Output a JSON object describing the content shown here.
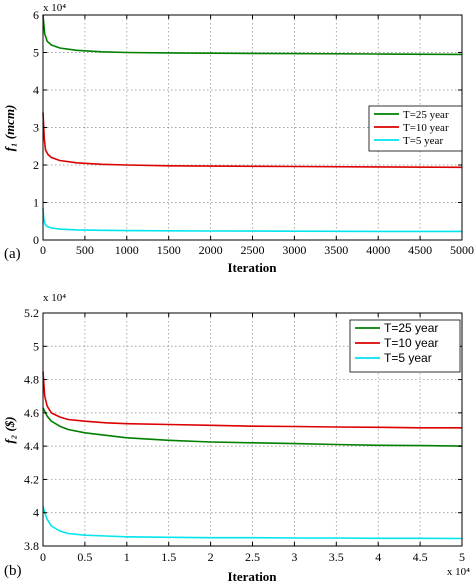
{
  "chart_data": [
    {
      "panel_tag": "(a)",
      "type": "line",
      "xlabel": "Iteration",
      "ylabel": "f₁ (mcm)",
      "y_exponent_label": "x 10⁴",
      "x_exponent_label": "",
      "xlim": [
        0,
        5000
      ],
      "ylim": [
        0,
        6
      ],
      "xticks": [
        0,
        500,
        1000,
        1500,
        2000,
        2500,
        3000,
        3500,
        4000,
        4500,
        5000
      ],
      "yticks": [
        0,
        1,
        2,
        3,
        4,
        5,
        6
      ],
      "xtick_labels": [
        "0",
        "500",
        "1000",
        "1500",
        "2000",
        "2500",
        "3000",
        "3500",
        "4000",
        "4500",
        "5000"
      ],
      "ytick_labels": [
        "0",
        "1",
        "2",
        "3",
        "4",
        "5",
        "6"
      ],
      "grid": true,
      "legend_position": "right-middle",
      "series": [
        {
          "name": "T=25 year",
          "color": "#008000",
          "x": [
            0,
            20,
            50,
            100,
            200,
            400,
            700,
            1000,
            1500,
            2000,
            3000,
            4000,
            5000
          ],
          "y": [
            6.0,
            5.5,
            5.3,
            5.2,
            5.12,
            5.06,
            5.02,
            5.0,
            4.99,
            4.98,
            4.97,
            4.96,
            4.95
          ]
        },
        {
          "name": "T=10 year",
          "color": "#dd0000",
          "x": [
            0,
            15,
            30,
            60,
            100,
            200,
            400,
            700,
            1000,
            1500,
            2000,
            3000,
            4000,
            5000
          ],
          "y": [
            3.4,
            2.7,
            2.4,
            2.28,
            2.2,
            2.12,
            2.06,
            2.02,
            2.0,
            1.98,
            1.97,
            1.96,
            1.95,
            1.94
          ]
        },
        {
          "name": "T=5 year",
          "color": "#00e5ee",
          "x": [
            0,
            10,
            25,
            50,
            100,
            200,
            400,
            700,
            1000,
            1500,
            2000,
            3000,
            4000,
            5000
          ],
          "y": [
            0.85,
            0.55,
            0.42,
            0.36,
            0.32,
            0.29,
            0.27,
            0.26,
            0.25,
            0.245,
            0.24,
            0.235,
            0.23,
            0.23
          ]
        }
      ]
    },
    {
      "panel_tag": "(b)",
      "type": "line",
      "xlabel": "Iteration",
      "ylabel": "f₂ ($)",
      "y_exponent_label": "x 10⁴",
      "x_exponent_label": "x 10⁴",
      "xlim": [
        0,
        5
      ],
      "ylim": [
        3.8,
        5.2
      ],
      "xticks": [
        0,
        0.5,
        1,
        1.5,
        2,
        2.5,
        3,
        3.5,
        4,
        4.5,
        5
      ],
      "yticks": [
        3.8,
        4,
        4.2,
        4.4,
        4.6,
        4.8,
        5,
        5.2
      ],
      "xtick_labels": [
        "0",
        "0.5",
        "1",
        "1.5",
        "2",
        "2.5",
        "3",
        "3.5",
        "4",
        "4.5",
        "5"
      ],
      "ytick_labels": [
        "3.8",
        "4",
        "4.2",
        "4.4",
        "4.6",
        "4.8",
        "5",
        "5.2"
      ],
      "grid": true,
      "legend_position": "top-right",
      "series": [
        {
          "name": "T=25 year",
          "color": "#008000",
          "x": [
            0,
            0.05,
            0.1,
            0.2,
            0.3,
            0.5,
            0.75,
            1.0,
            1.5,
            2.0,
            2.5,
            3.0,
            3.5,
            4.0,
            4.5,
            5.0
          ],
          "y": [
            4.63,
            4.58,
            4.55,
            4.52,
            4.5,
            4.48,
            4.465,
            4.45,
            4.435,
            4.425,
            4.42,
            4.415,
            4.41,
            4.405,
            4.403,
            4.4
          ]
        },
        {
          "name": "T=10 year",
          "color": "#dd0000",
          "x": [
            0,
            0.02,
            0.05,
            0.1,
            0.2,
            0.3,
            0.5,
            0.75,
            1.0,
            1.5,
            2.0,
            2.5,
            3.0,
            3.5,
            4.0,
            4.5,
            5.0
          ],
          "y": [
            4.85,
            4.7,
            4.64,
            4.6,
            4.575,
            4.56,
            4.55,
            4.54,
            4.535,
            4.53,
            4.525,
            4.52,
            4.518,
            4.515,
            4.513,
            4.51,
            4.51
          ]
        },
        {
          "name": "T=5 year",
          "color": "#00e5ee",
          "x": [
            0,
            0.02,
            0.05,
            0.1,
            0.2,
            0.3,
            0.5,
            0.75,
            1.0,
            1.5,
            2.0,
            2.5,
            3.0,
            3.5,
            4.0,
            4.5,
            5.0
          ],
          "y": [
            4.04,
            4.0,
            3.96,
            3.92,
            3.89,
            3.875,
            3.865,
            3.86,
            3.855,
            3.852,
            3.85,
            3.85,
            3.848,
            3.848,
            3.846,
            3.846,
            3.845
          ]
        }
      ]
    }
  ]
}
